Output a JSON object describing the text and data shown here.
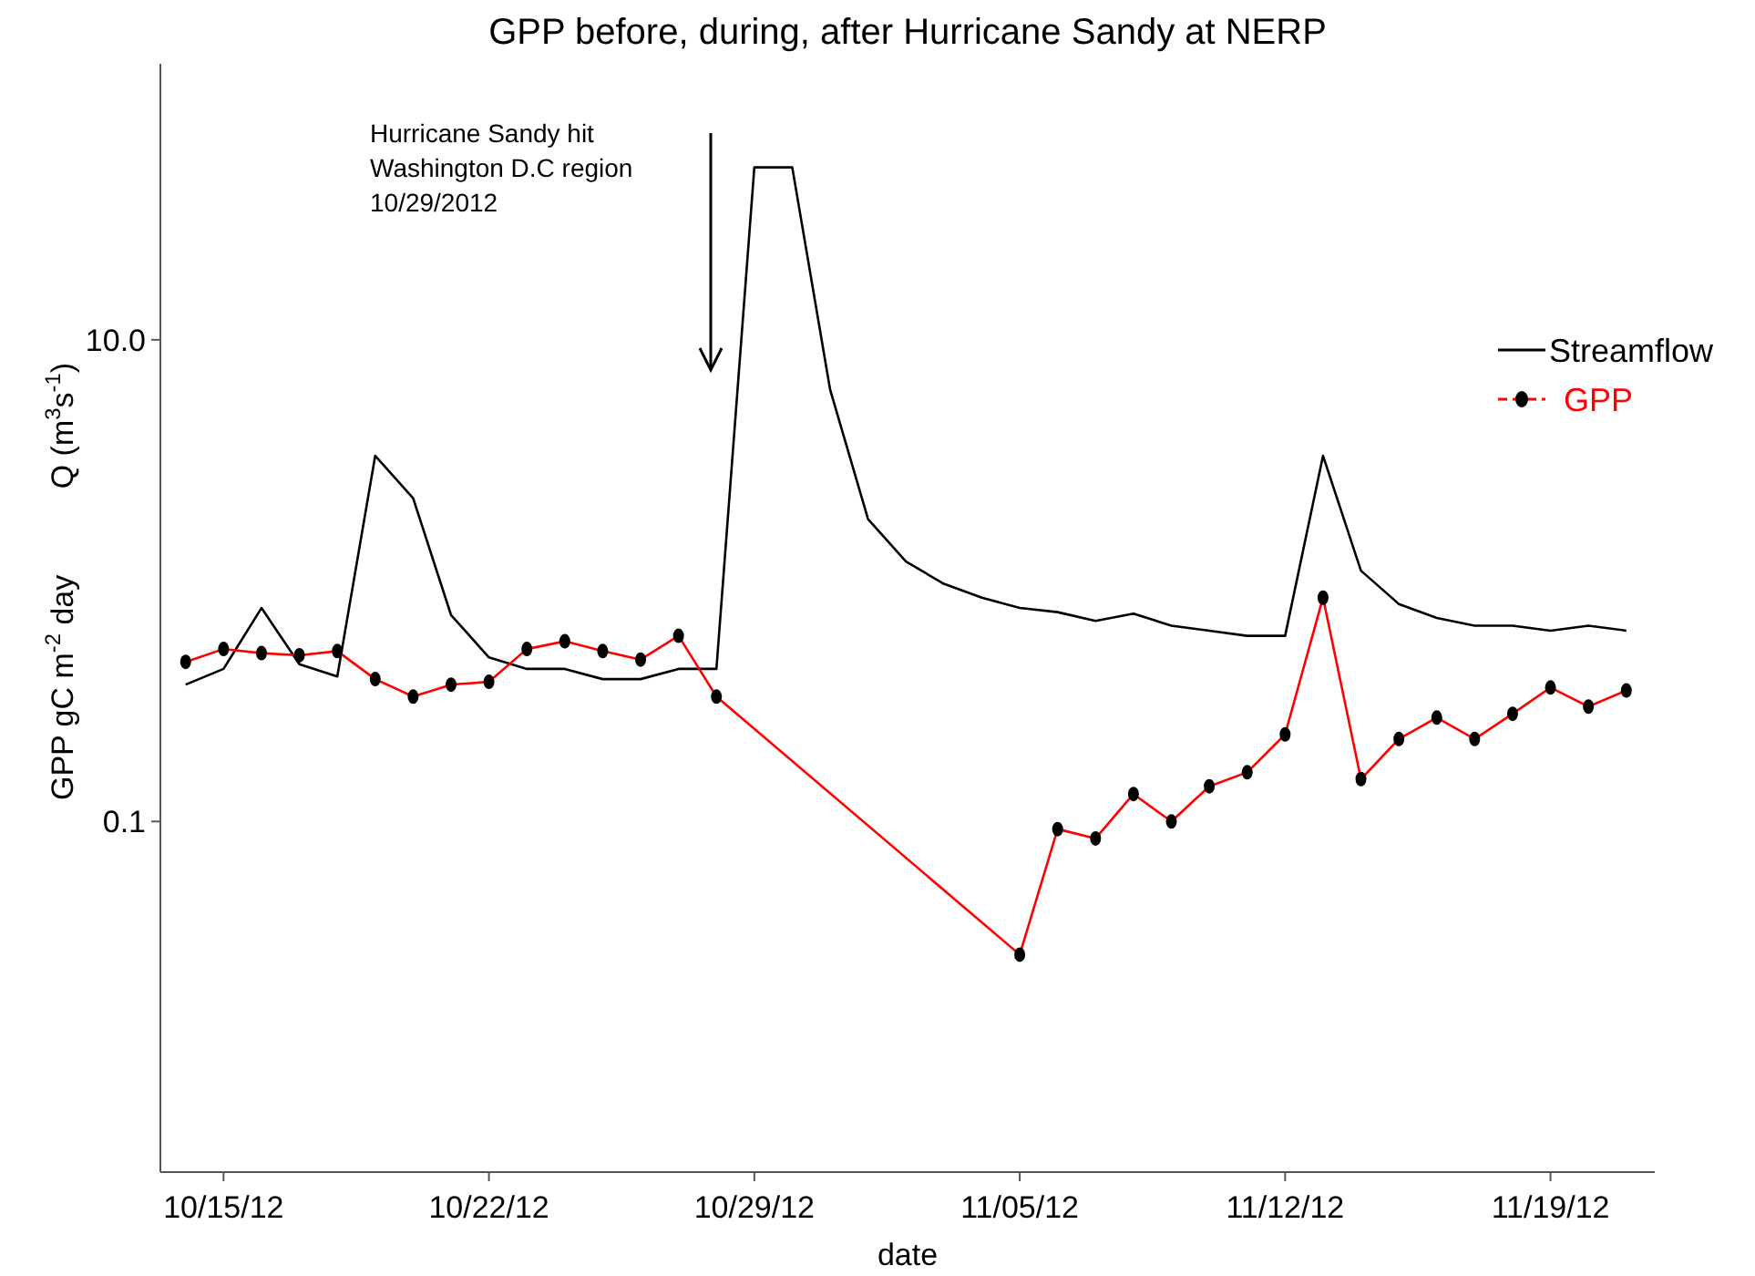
{
  "chart_data": {
    "type": "line",
    "title": "GPP before, during, after Hurricane Sandy at NERP",
    "xlabel": "date",
    "ylabel": "GPP gC m$^{-2}$ day          Q (m$^{3}$s$^{-1}$)",
    "log": "y",
    "legend": "right",
    "xlim": [
      "2012-10-13T08:00",
      "2012-11-21T18:00"
    ],
    "xticks": [
      {
        "value": "2012-10-15",
        "label": "10/15/12"
      },
      {
        "value": "2012-10-22",
        "label": "10/22/12"
      },
      {
        "value": "2012-10-29",
        "label": "10/29/12"
      },
      {
        "value": "2012-11-05",
        "label": "11/05/12"
      },
      {
        "value": "2012-11-12",
        "label": "11/12/12"
      },
      {
        "value": "2012-11-19",
        "label": "11/19/12"
      }
    ],
    "ylim": [
      0.0035,
      140
    ],
    "yticks": [
      {
        "value": 0.1,
        "label": "0.1"
      },
      {
        "value": 10,
        "label": "10.0"
      }
    ],
    "annotations": [
      "Hurricane Sandy hit\nWashington D.C region\n10/29/2012"
    ],
    "series": [
      {
        "name": "Streamflow",
        "color": "#000000",
        "marker": "none",
        "line_style": "solid",
        "x": [
          "2012-10-14",
          "2012-10-15",
          "2012-10-16",
          "2012-10-17",
          "2012-10-18",
          "2012-10-19",
          "2012-10-20",
          "2012-10-21",
          "2012-10-22",
          "2012-10-23",
          "2012-10-24",
          "2012-10-25",
          "2012-10-26",
          "2012-10-27",
          "2012-10-28",
          "2012-10-29",
          "2012-10-30",
          "2012-10-31",
          "2012-11-01",
          "2012-11-02",
          "2012-11-03",
          "2012-11-04",
          "2012-11-05",
          "2012-11-06",
          "2012-11-07",
          "2012-11-08",
          "2012-11-09",
          "2012-11-10",
          "2012-11-11",
          "2012-11-12",
          "2012-11-13",
          "2012-11-14",
          "2012-11-15",
          "2012-11-16",
          "2012-11-17",
          "2012-11-18",
          "2012-11-19",
          "2012-11-20",
          "2012-11-21"
        ],
        "values": [
          0.37,
          0.43,
          0.77,
          0.45,
          0.4,
          3.3,
          2.2,
          0.72,
          0.48,
          0.43,
          0.43,
          0.39,
          0.39,
          0.43,
          0.43,
          52,
          52,
          6.2,
          1.8,
          1.2,
          0.97,
          0.85,
          0.77,
          0.74,
          0.68,
          0.73,
          0.65,
          0.62,
          0.59,
          0.59,
          3.3,
          1.1,
          0.8,
          0.7,
          0.65,
          0.65,
          0.62,
          0.65,
          0.62
        ]
      },
      {
        "name": "GPP",
        "color": "#ff0000",
        "marker": "circle",
        "line_style": "solid",
        "x": [
          "2012-10-14",
          "2012-10-15",
          "2012-10-16",
          "2012-10-17",
          "2012-10-18",
          "2012-10-19",
          "2012-10-20",
          "2012-10-21",
          "2012-10-22",
          "2012-10-23",
          "2012-10-24",
          "2012-10-25",
          "2012-10-26",
          "2012-10-27",
          "2012-10-28",
          "2012-11-05",
          "2012-11-06",
          "2012-11-07",
          "2012-11-08",
          "2012-11-09",
          "2012-11-10",
          "2012-11-11",
          "2012-11-12",
          "2012-11-13",
          "2012-11-14",
          "2012-11-15",
          "2012-11-16",
          "2012-11-17",
          "2012-11-18",
          "2012-11-19",
          "2012-11-20",
          "2012-11-21"
        ],
        "values": [
          0.46,
          0.52,
          0.5,
          0.49,
          0.51,
          0.39,
          0.33,
          0.37,
          0.38,
          0.52,
          0.56,
          0.51,
          0.47,
          0.59,
          0.33,
          0.028,
          0.093,
          0.085,
          0.13,
          0.1,
          0.14,
          0.16,
          0.23,
          0.85,
          0.15,
          0.22,
          0.27,
          0.22,
          0.28,
          0.36,
          0.3,
          0.35
        ]
      }
    ]
  }
}
